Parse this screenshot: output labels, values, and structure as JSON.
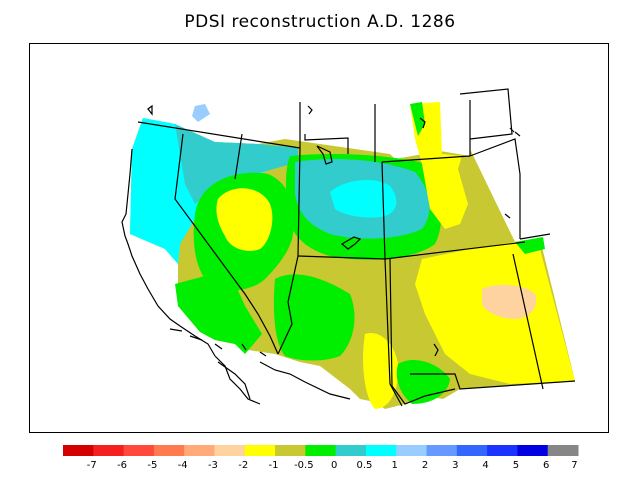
{
  "title": "PDSI reconstruction A.D. 1286",
  "legend": {
    "colors": [
      "#d40000",
      "#f51f1f",
      "#ff4a3b",
      "#ff7a4f",
      "#ffaa78",
      "#ffd3a0",
      "#ffff00",
      "#c8c832",
      "#00ee00",
      "#33cccc",
      "#00ffff",
      "#99ccff",
      "#6699ff",
      "#3366ff",
      "#1a33ff",
      "#0000e0",
      "#868686"
    ],
    "tick_labels": [
      "-7",
      "-6",
      "-5",
      "-4",
      "-3",
      "-2",
      "-1",
      "-0.5",
      "0",
      "0.5",
      "1",
      "2",
      "3",
      "4",
      "5",
      "6",
      "7"
    ]
  }
}
